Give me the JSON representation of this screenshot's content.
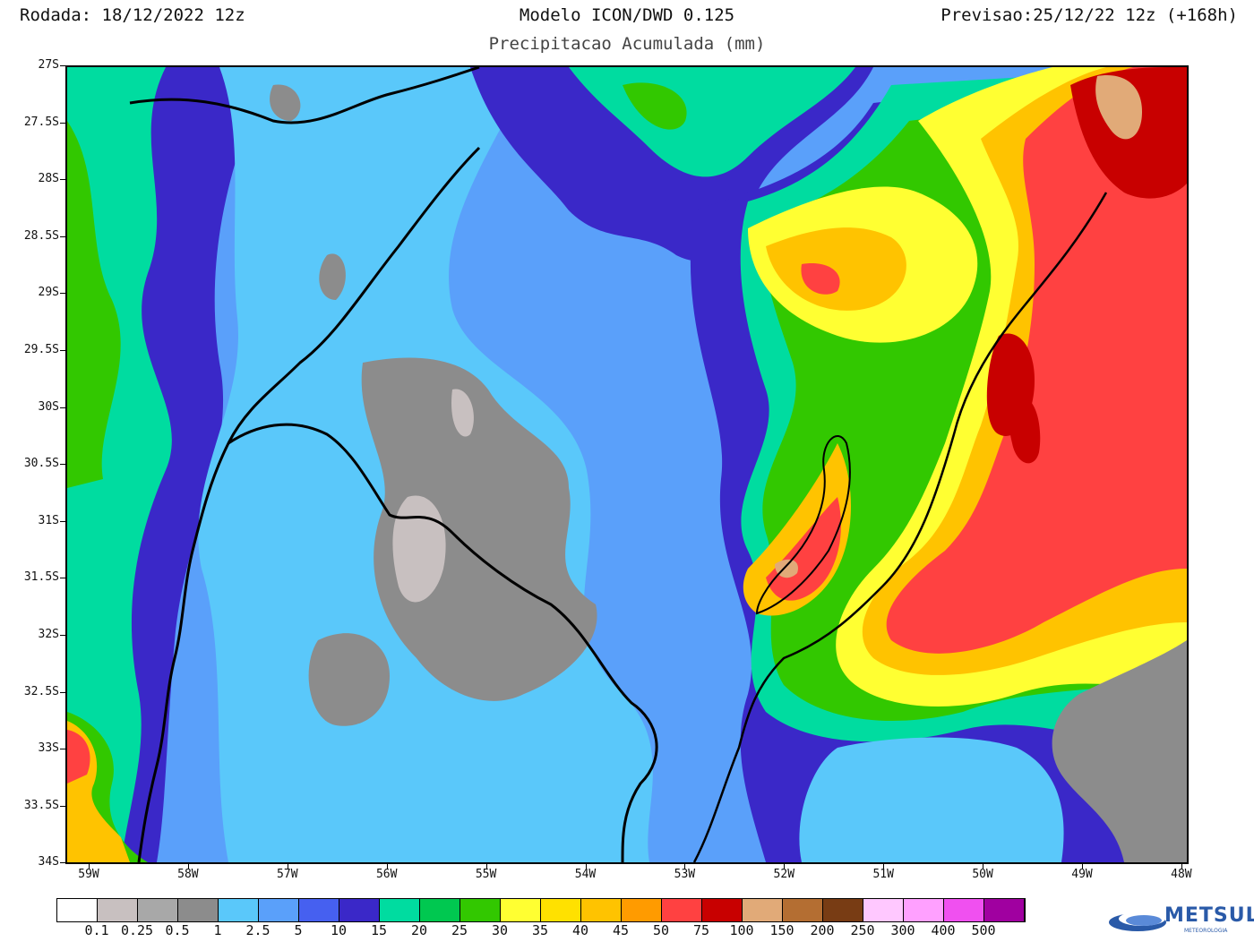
{
  "header": {
    "run": "Rodada: 18/12/2022 12z",
    "model": "Modelo ICON/DWD 0.125",
    "subtitle": "Precipitacao Acumulada (mm)",
    "forecast": "Previsao:25/12/22 12z (+168h)"
  },
  "map": {
    "lat_ticks": [
      "27S",
      "27.5S",
      "28S",
      "28.5S",
      "29S",
      "29.5S",
      "30S",
      "30.5S",
      "31S",
      "31.5S",
      "32S",
      "32.5S",
      "33S",
      "33.5S",
      "34S"
    ],
    "lon_ticks": [
      "59W",
      "58W",
      "57W",
      "56W",
      "55W",
      "54W",
      "53W",
      "52W",
      "51W",
      "50W",
      "49W",
      "48W"
    ]
  },
  "colorbar": {
    "colors": [
      "#ffffff",
      "#c8c0c0",
      "#a8a8a8",
      "#8c8c8c",
      "#5ac8fa",
      "#5aa0fa",
      "#4660f0",
      "#3a28c8",
      "#00dca0",
      "#00c850",
      "#32c800",
      "#ffff32",
      "#ffe100",
      "#ffc300",
      "#ff9b00",
      "#ff4141",
      "#c80000",
      "#e1aa78",
      "#b46e32",
      "#783c14",
      "#ffc8ff",
      "#ffa0ff",
      "#f050f0",
      "#a000a0"
    ],
    "labels": [
      "0.1",
      "0.25",
      "0.5",
      "1",
      "2.5",
      "5",
      "10",
      "15",
      "20",
      "25",
      "30",
      "35",
      "40",
      "45",
      "50",
      "75",
      "100",
      "150",
      "200",
      "250",
      "300",
      "400",
      "500"
    ]
  },
  "logo": {
    "name": "METSUL",
    "sub": "METEOROLOGIA"
  }
}
